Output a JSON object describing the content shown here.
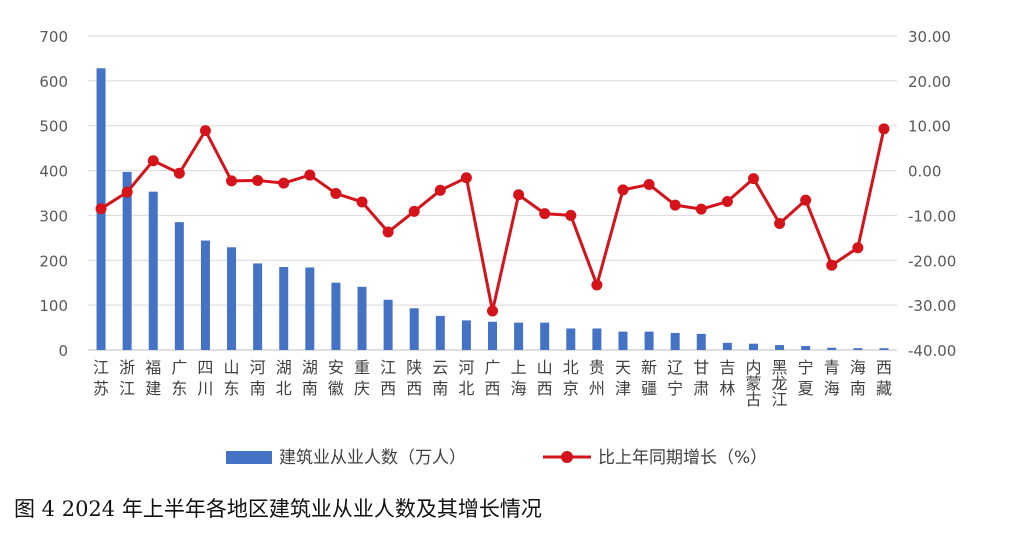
{
  "chart_data": {
    "type": "bar+line",
    "categories": [
      "江苏",
      "浙江",
      "福建",
      "广东",
      "四川",
      "山东",
      "河南",
      "湖北",
      "湖南",
      "安徽",
      "重庆",
      "江西",
      "陕西",
      "云南",
      "河北",
      "广西",
      "上海",
      "山西",
      "北京",
      "贵州",
      "天津",
      "新疆",
      "辽宁",
      "甘肃",
      "吉林",
      "内蒙古",
      "黑龙江",
      "宁夏",
      "青海",
      "海南",
      "西藏"
    ],
    "bar_series": {
      "name": "建筑业从业人数（万人）",
      "axis": "left",
      "color": "#4472C4",
      "values": [
        628,
        397,
        353,
        285,
        244,
        229,
        193,
        185,
        184,
        150,
        141,
        112,
        93,
        76,
        66,
        63,
        61,
        61,
        48,
        48,
        41,
        41,
        38,
        36,
        16,
        14,
        11,
        9,
        5,
        4,
        4
      ]
    },
    "line_series": {
      "name": "比上年同期增长（%）",
      "axis": "right",
      "color": "#D4131B",
      "values": [
        -8.5,
        -4.8,
        2.2,
        -0.6,
        8.9,
        -2.3,
        -2.2,
        -2.8,
        -1.0,
        -5.1,
        -7.0,
        -13.7,
        -9.1,
        -4.4,
        -1.6,
        -31.3,
        -5.4,
        -9.6,
        -10.0,
        -25.5,
        -4.3,
        -3.1,
        -7.7,
        -8.6,
        -6.9,
        -1.8,
        -11.8,
        -6.6,
        -21.1,
        -17.2,
        9.3
      ]
    },
    "left_axis": {
      "ticks": [
        "0",
        "100",
        "200",
        "300",
        "400",
        "500",
        "600",
        "700"
      ],
      "ylim": [
        0,
        700
      ]
    },
    "right_axis": {
      "ticks": [
        "-40.00",
        "-30.00",
        "-20.00",
        "-10.00",
        "0.00",
        "10.00",
        "20.00",
        "30.00"
      ],
      "ylim": [
        -40,
        30
      ]
    },
    "grid": true,
    "legend_position": "bottom",
    "xlabel": "",
    "ylabel_left": "",
    "ylabel_right": ""
  },
  "caption": "图 4 2024 年上半年各地区建筑业从业人数及其增长情况"
}
